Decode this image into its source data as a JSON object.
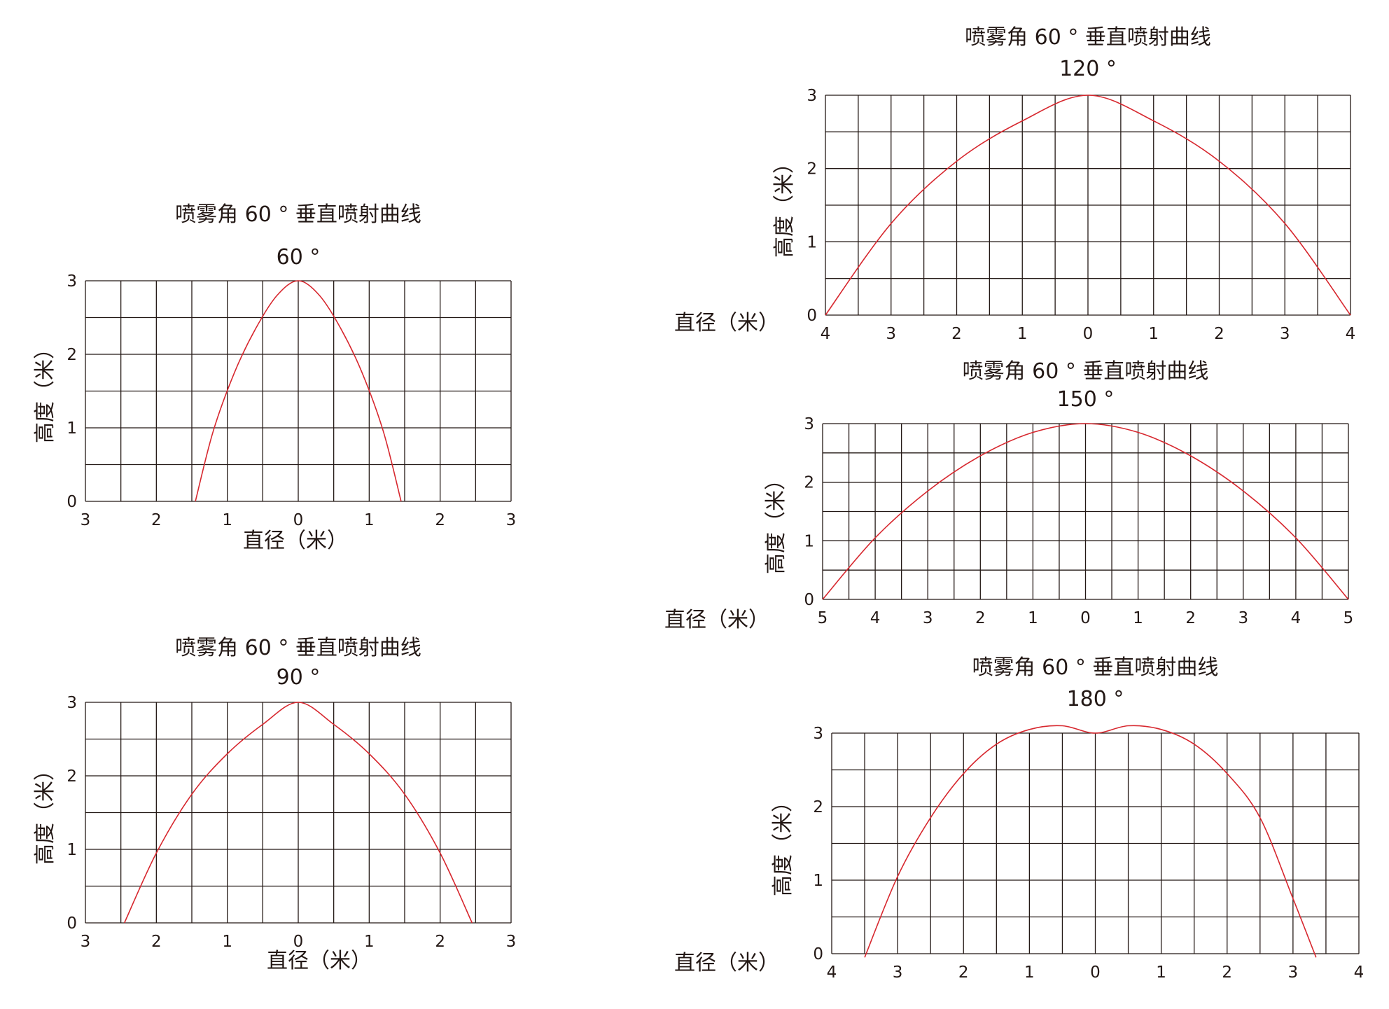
{
  "chart_data": [
    {
      "type": "line",
      "title": "喷雾角 60 ° 垂直喷射曲线",
      "subtitle": "60 °",
      "xlabel": "直径（米）",
      "ylabel": "高度（米）",
      "xlim": [
        -3,
        3
      ],
      "ylim": [
        0,
        3
      ],
      "x_tick_labels": [
        "3",
        "2",
        "1",
        "0",
        "1",
        "2",
        "3"
      ],
      "y_tick_labels": [
        "0",
        "1",
        "2",
        "3"
      ],
      "grid": true,
      "series": [
        {
          "color": "#d7282f",
          "x": [
            -1.45,
            -1.2,
            -0.9,
            -0.6,
            -0.3,
            0,
            0.3,
            0.6,
            0.9,
            1.2,
            1.45
          ],
          "y": [
            0,
            0.95,
            1.75,
            2.35,
            2.8,
            3.0,
            2.8,
            2.35,
            1.75,
            0.95,
            0
          ]
        }
      ]
    },
    {
      "type": "line",
      "title": "喷雾角 60 ° 垂直喷射曲线",
      "subtitle": "90 °",
      "xlabel": "直径（米）",
      "ylabel": "高度（米）",
      "xlim": [
        -3,
        3
      ],
      "ylim": [
        0,
        3
      ],
      "x_tick_labels": [
        "3",
        "2",
        "1",
        "0",
        "1",
        "2",
        "3"
      ],
      "y_tick_labels": [
        "0",
        "1",
        "2",
        "3"
      ],
      "grid": true,
      "series": [
        {
          "color": "#d7282f",
          "x": [
            -2.45,
            -2.0,
            -1.5,
            -1.0,
            -0.5,
            0,
            0.5,
            1.0,
            1.5,
            2.0,
            2.45
          ],
          "y": [
            0,
            0.95,
            1.75,
            2.3,
            2.7,
            3.0,
            2.7,
            2.3,
            1.75,
            0.95,
            0
          ]
        }
      ]
    },
    {
      "type": "line",
      "title": "喷雾角 60 ° 垂直喷射曲线",
      "subtitle": "120 °",
      "xlabel": "直径（米）",
      "ylabel": "高度（米）",
      "xlim": [
        -4,
        4
      ],
      "ylim": [
        0,
        3
      ],
      "x_tick_labels": [
        "4",
        "3",
        "2",
        "1",
        "0",
        "1",
        "2",
        "3",
        "4"
      ],
      "y_tick_labels": [
        "0",
        "1",
        "2",
        "3"
      ],
      "grid": true,
      "series": [
        {
          "color": "#d7282f",
          "x": [
            -4.0,
            -3.0,
            -2.0,
            -1.0,
            0,
            1.0,
            2.0,
            3.0,
            4.0
          ],
          "y": [
            0,
            1.25,
            2.1,
            2.65,
            3.0,
            2.65,
            2.1,
            1.25,
            0
          ]
        }
      ]
    },
    {
      "type": "line",
      "title": "喷雾角 60 ° 垂直喷射曲线",
      "subtitle": "150 °",
      "xlabel": "直径（米）",
      "ylabel": "高度（米）",
      "xlim": [
        -5,
        5
      ],
      "ylim": [
        0,
        3
      ],
      "x_tick_labels": [
        "5",
        "4",
        "3",
        "2",
        "1",
        "0",
        "1",
        "2",
        "3",
        "4",
        "5"
      ],
      "y_tick_labels": [
        "0",
        "1",
        "2",
        "3"
      ],
      "grid": true,
      "series": [
        {
          "color": "#d7282f",
          "x": [
            -5.0,
            -4.0,
            -3.0,
            -2.0,
            -1.0,
            0,
            1.0,
            2.0,
            3.0,
            4.0,
            5.0
          ],
          "y": [
            0,
            1.05,
            1.85,
            2.45,
            2.85,
            3.0,
            2.85,
            2.45,
            1.85,
            1.05,
            0
          ]
        }
      ]
    },
    {
      "type": "line",
      "title": "喷雾角 60 ° 垂直喷射曲线",
      "subtitle": "180 °",
      "xlabel": "直径（米）",
      "ylabel": "高度（米）",
      "xlim": [
        -4,
        4
      ],
      "ylim": [
        0,
        3
      ],
      "x_tick_labels": [
        "4",
        "3",
        "2",
        "1",
        "0",
        "1",
        "2",
        "3",
        "4"
      ],
      "y_tick_labels": [
        "0",
        "1",
        "2",
        "3"
      ],
      "grid": true,
      "series": [
        {
          "color": "#d7282f",
          "x": [
            -3.5,
            -3.0,
            -2.5,
            -2.0,
            -1.5,
            -1.0,
            -0.5,
            0,
            0.5,
            1.0,
            1.5,
            2.0,
            2.5,
            3.0,
            3.35
          ],
          "y": [
            -0.05,
            1.05,
            1.85,
            2.45,
            2.85,
            3.05,
            3.1,
            3.0,
            3.1,
            3.05,
            2.85,
            2.45,
            1.85,
            0.75,
            -0.05
          ]
        }
      ]
    }
  ]
}
